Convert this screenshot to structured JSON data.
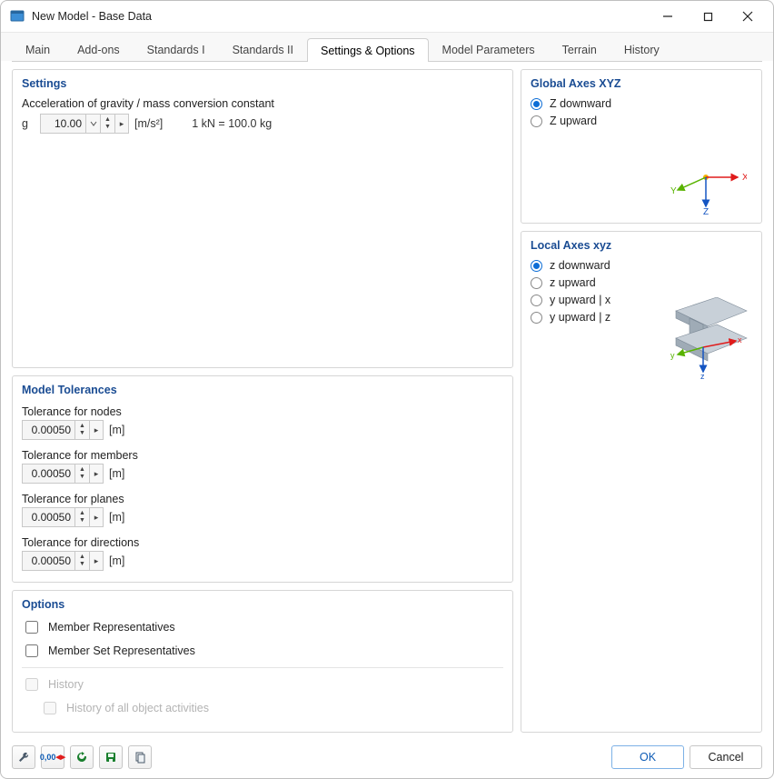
{
  "window": {
    "title": "New Model - Base Data"
  },
  "tabs": {
    "items": [
      "Main",
      "Add-ons",
      "Standards I",
      "Standards II",
      "Settings & Options",
      "Model Parameters",
      "Terrain",
      "History"
    ],
    "active_index": 4
  },
  "settings": {
    "title": "Settings",
    "gravity_label": "Acceleration of gravity / mass conversion constant",
    "g_symbol": "g",
    "g_value": "10.00",
    "g_unit": "[m/s²]",
    "conversion": "1 kN = 100.0 kg"
  },
  "tolerances": {
    "title": "Model Tolerances",
    "unit": "[m]",
    "items": [
      {
        "label": "Tolerance for nodes",
        "value": "0.00050"
      },
      {
        "label": "Tolerance for members",
        "value": "0.00050"
      },
      {
        "label": "Tolerance for planes",
        "value": "0.00050"
      },
      {
        "label": "Tolerance for directions",
        "value": "0.00050"
      }
    ]
  },
  "options": {
    "title": "Options",
    "member_rep": "Member Representatives",
    "memberset_rep": "Member Set Representatives",
    "history": "History",
    "history_all": "History of all object activities"
  },
  "globalAxes": {
    "title": "Global Axes XYZ",
    "options": [
      "Z downward",
      "Z upward"
    ],
    "selected": 0,
    "labels": {
      "x": "X",
      "y": "Y",
      "z": "Z"
    },
    "colors": {
      "x": "#e01b1b",
      "y": "#59b300",
      "z": "#1555c2",
      "origin": "#f5b100"
    }
  },
  "localAxes": {
    "title": "Local Axes xyz",
    "options": [
      "z downward",
      "z upward",
      "y upward | x",
      "y upward | z"
    ],
    "selected": 0,
    "labels": {
      "x": "x",
      "y": "y",
      "z": "z"
    },
    "colors": {
      "x": "#e01b1b",
      "y": "#59b300",
      "z": "#1555c2",
      "beam": "#7d8a97",
      "beam_light": "#c8d0d8"
    }
  },
  "footer": {
    "ok": "OK",
    "cancel": "Cancel"
  },
  "toolbar": {
    "icons": [
      "wrench-icon",
      "decimals-icon",
      "refresh-icon",
      "save-icon",
      "copy-icon"
    ]
  }
}
